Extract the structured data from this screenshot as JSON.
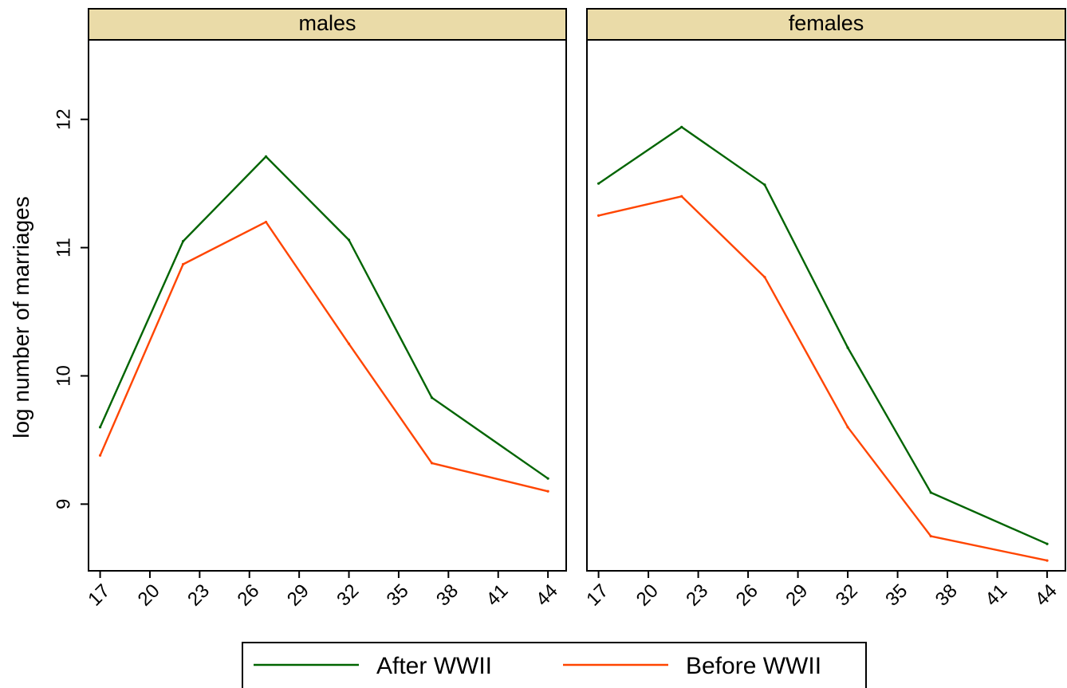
{
  "chart_data": {
    "type": "line",
    "ylabel": "log number of marriages",
    "ylim": [
      8.48,
      12.62
    ],
    "xlim": [
      16.3,
      45.1
    ],
    "y_ticks": [
      9,
      10,
      11,
      12
    ],
    "x_ticks": [
      17,
      20,
      23,
      26,
      29,
      32,
      35,
      38,
      41,
      44
    ],
    "legend_position": "bottom",
    "colors": {
      "after": "#006400",
      "before": "#FF4500",
      "strip": "#EADBA8"
    },
    "legend": [
      {
        "label": "After WWII",
        "color": "#006400"
      },
      {
        "label": "Before WWII",
        "color": "#FF4500"
      }
    ],
    "panels": [
      {
        "title": "males",
        "series": [
          {
            "name": "After WWII",
            "x": [
              17,
              22,
              27,
              32,
              37,
              44
            ],
            "y": [
              9.6,
              11.05,
              11.71,
              11.06,
              9.83,
              9.2
            ]
          },
          {
            "name": "Before WWII",
            "x": [
              17,
              22,
              27,
              32,
              37,
              44
            ],
            "y": [
              9.38,
              10.87,
              11.2,
              10.25,
              9.32,
              9.1
            ]
          }
        ]
      },
      {
        "title": "females",
        "series": [
          {
            "name": "After WWII",
            "x": [
              17,
              22,
              27,
              32,
              37,
              44
            ],
            "y": [
              11.5,
              11.94,
              11.49,
              10.22,
              9.09,
              8.69
            ]
          },
          {
            "name": "Before WWII",
            "x": [
              17,
              22,
              27,
              32,
              37,
              44
            ],
            "y": [
              11.25,
              11.4,
              10.77,
              9.6,
              8.75,
              8.56
            ]
          }
        ]
      }
    ]
  }
}
